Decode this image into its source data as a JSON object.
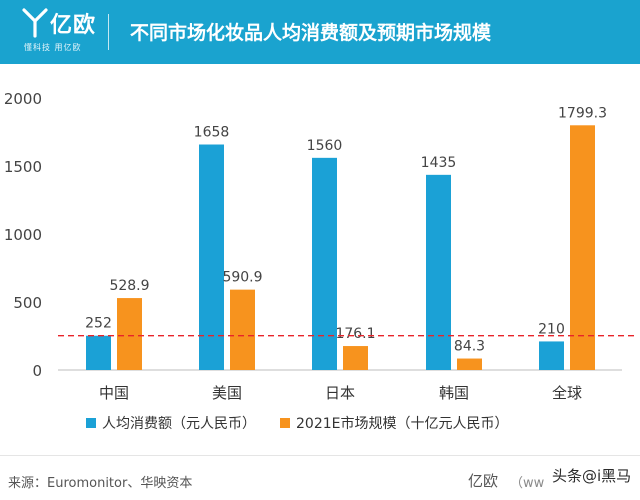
{
  "header": {
    "logo_name": "亿欧",
    "logo_tagline": "懂科技 用亿欧",
    "title": "不同市场化妆品人均消费额及预期市场规模",
    "background_color": "#1aa3cf",
    "logo_icon": "yiou-logo-icon"
  },
  "chart_data": {
    "type": "bar",
    "categories": [
      "中国",
      "美国",
      "日本",
      "韩国",
      "全球"
    ],
    "series": [
      {
        "name": "人均消费额（元人民币）",
        "values": [
          252,
          1658,
          1560,
          1435,
          210
        ],
        "color": "#1ba1d6"
      },
      {
        "name": "2021E市场规模（十亿元人民币）",
        "values": [
          528.9,
          590.9,
          176.1,
          84.3,
          1799.3
        ],
        "color": "#f7931e"
      }
    ],
    "data_labels": [
      [
        "252",
        "1658",
        "1560",
        "1435",
        "210"
      ],
      [
        "528.9",
        "590.9",
        "176.1",
        "84.3",
        "1799.3"
      ]
    ],
    "yticks": [
      0,
      500,
      1000,
      1500,
      2000
    ],
    "ylim": [
      0,
      2000
    ],
    "reference_line": {
      "value": 252,
      "style": "dashed",
      "color": "#e8242a"
    },
    "legend_position": "bottom",
    "grid": false
  },
  "footer": {
    "source": "来源：Euromonitor、华映资本",
    "brand": "亿欧",
    "url_partial": "（ww",
    "watermark": "头条@i黑马"
  }
}
